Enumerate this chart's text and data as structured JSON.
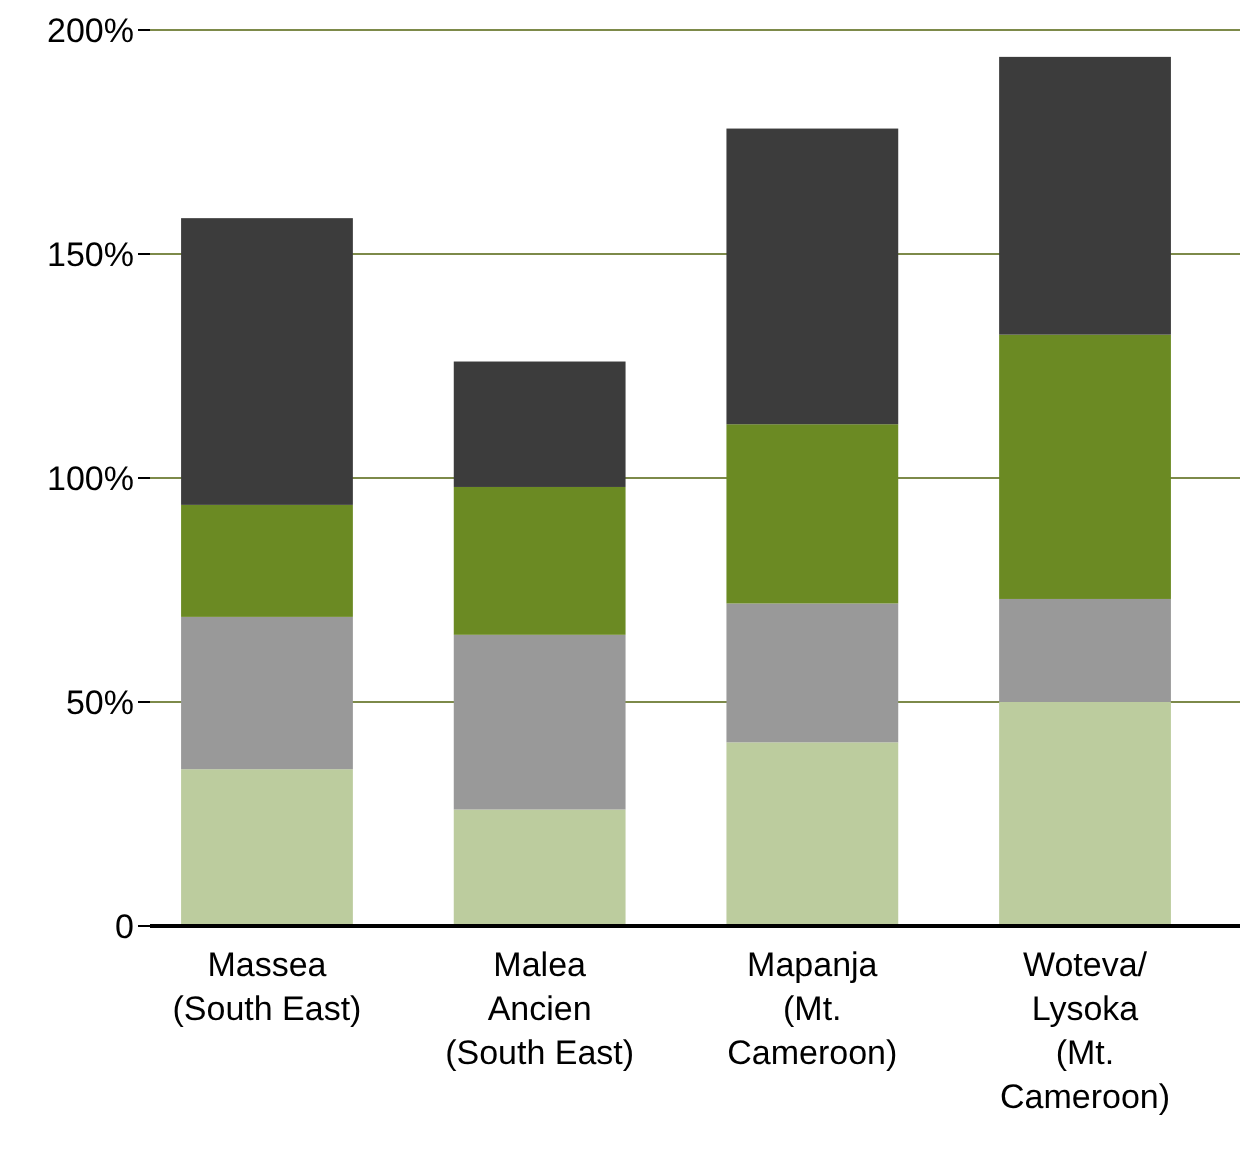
{
  "chart_data": {
    "type": "bar",
    "stacked": true,
    "categories": [
      "Massea\n(South East)",
      "Malea\nAncien\n(South East)",
      "Mapanja\n(Mt.\nCameroon)",
      "Woteva/\nLysoka\n(Mt.\nCameroon)"
    ],
    "series": [
      {
        "color": "#bccc9e",
        "values": [
          35,
          26,
          41,
          50
        ]
      },
      {
        "color": "#999999",
        "values": [
          34,
          39,
          31,
          23
        ]
      },
      {
        "color": "#6b8a23",
        "values": [
          25,
          33,
          40,
          59
        ]
      },
      {
        "color": "#3c3c3c",
        "values": [
          64,
          28,
          66,
          62
        ]
      }
    ],
    "ylim": [
      0,
      200
    ],
    "yticks": [
      {
        "value": 0,
        "label": "0"
      },
      {
        "value": 50,
        "label": "50%"
      },
      {
        "value": 100,
        "label": "100%"
      },
      {
        "value": 150,
        "label": "150%"
      },
      {
        "value": 200,
        "label": "200%"
      }
    ],
    "grid": "y"
  }
}
